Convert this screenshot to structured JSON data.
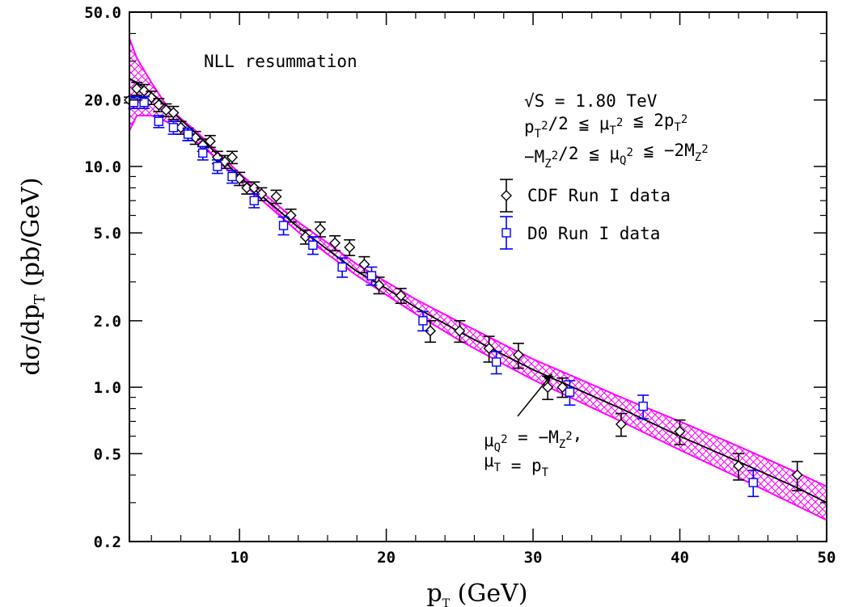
{
  "chart_data": {
    "type": "scatter",
    "title": "",
    "xlabel": "p",
    "xlabel_sub": "T",
    "xlabel_unit": " (GeV)",
    "ylabel": "dσ/dp",
    "ylabel_sub": "T",
    "ylabel_unit": " (pb/GeV)",
    "xlim": [
      2.5,
      50
    ],
    "ylim": [
      0.2,
      50
    ],
    "y_scale": "log",
    "grid": false,
    "x_ticks": [
      10,
      20,
      30,
      40,
      50
    ],
    "x_tick_labels": [
      "10",
      "20",
      "30",
      "40",
      "50"
    ],
    "y_ticks": [
      0.2,
      0.5,
      1.0,
      2.0,
      5.0,
      10.0,
      20.0,
      50.0
    ],
    "y_tick_labels": [
      "0.2",
      "0.5",
      "1.0",
      "2.0",
      "5.0",
      "10.0",
      "20.0",
      "50.0"
    ],
    "annotations": {
      "method": "NLL resummation",
      "energy": "√S =  1.80 TeV",
      "mu_t_range": "p_T^2/2 ≦ μ_T^2 ≦ 2p_T^2",
      "mu_q_range": "−M_Z^2/2 ≦ μ_Q^2 ≦ −2M_Z^2",
      "curve_label_1": "μ_Q^2 = −M_Z^2,",
      "curve_label_2": "μ_T = p_T"
    },
    "legend_position": "top-right",
    "series": [
      {
        "name": "CDF Run I data",
        "marker": "diamond",
        "color": "#000000",
        "x": [
          2.5,
          3.0,
          3.5,
          4.0,
          4.5,
          5.0,
          5.5,
          6.0,
          6.5,
          7.0,
          7.5,
          8.0,
          8.5,
          9.0,
          9.5,
          10.0,
          10.5,
          11.0,
          11.5,
          12.5,
          13.5,
          14.5,
          15.5,
          16.5,
          17.5,
          18.5,
          19.5,
          21.0,
          23.0,
          25.0,
          27.0,
          29.0,
          31.0,
          32.0,
          36.0,
          40.0,
          44.0,
          48.0
        ],
        "y": [
          20.0,
          22.5,
          22.0,
          20.5,
          19.0,
          18.0,
          17.5,
          15.0,
          14.0,
          13.5,
          12.5,
          13.0,
          11.0,
          10.5,
          11.0,
          8.8,
          8.0,
          8.0,
          7.5,
          7.3,
          6.0,
          4.8,
          5.2,
          4.5,
          4.3,
          3.6,
          2.9,
          2.6,
          1.8,
          1.8,
          1.5,
          1.4,
          1.0,
          1.0,
          0.68,
          0.63,
          0.44,
          0.4
        ],
        "yerr": [
          0.6,
          1.5,
          1.5,
          1.4,
          1.3,
          1.2,
          1.2,
          1.0,
          0.9,
          0.9,
          0.8,
          0.8,
          0.7,
          0.7,
          0.7,
          0.6,
          0.5,
          0.5,
          0.5,
          0.5,
          0.4,
          0.35,
          0.4,
          0.35,
          0.35,
          0.3,
          0.25,
          0.2,
          0.2,
          0.2,
          0.2,
          0.18,
          0.12,
          0.1,
          0.08,
          0.08,
          0.06,
          0.06
        ]
      },
      {
        "name": "D0 Run I data",
        "marker": "square",
        "color": "#0000ff",
        "x": [
          2.8,
          3.5,
          4.5,
          5.5,
          6.5,
          7.5,
          8.5,
          9.5,
          11.0,
          13.0,
          15.0,
          17.0,
          19.0,
          22.5,
          27.5,
          32.5,
          37.5,
          45.0
        ],
        "y": [
          19.5,
          19.5,
          16.0,
          15.0,
          14.0,
          11.5,
          10.0,
          9.0,
          7.0,
          5.4,
          4.4,
          3.5,
          3.2,
          2.0,
          1.3,
          0.95,
          0.82,
          0.37
        ],
        "yerr": [
          1.2,
          1.2,
          1.0,
          1.0,
          0.9,
          0.8,
          0.7,
          0.6,
          0.5,
          0.5,
          0.4,
          0.35,
          0.3,
          0.2,
          0.15,
          0.12,
          0.1,
          0.05
        ]
      },
      {
        "name": "central",
        "type": "line",
        "color": "#000000",
        "x": [
          2.5,
          3,
          4,
          5,
          6,
          7,
          8,
          9,
          10,
          12,
          14,
          16,
          18,
          20,
          22,
          25,
          28,
          30,
          33,
          36,
          40,
          44,
          48,
          50
        ],
        "y": [
          25.0,
          24.0,
          21.5,
          18.8,
          16.3,
          14.2,
          12.2,
          10.5,
          9.0,
          6.9,
          5.3,
          4.2,
          3.35,
          2.8,
          2.3,
          1.78,
          1.4,
          1.2,
          0.98,
          0.8,
          0.6,
          0.46,
          0.35,
          0.3
        ]
      },
      {
        "name": "band",
        "type": "area",
        "color": "#ff00ff",
        "x": [
          2.5,
          3,
          4,
          5,
          6,
          7,
          8,
          9,
          10,
          12,
          14,
          16,
          18,
          20,
          22,
          25,
          28,
          30,
          33,
          36,
          40,
          44,
          48,
          50
        ],
        "upper": [
          38.0,
          31.0,
          24.0,
          19.0,
          16.5,
          14.5,
          12.5,
          10.8,
          9.3,
          7.2,
          5.6,
          4.5,
          3.6,
          3.0,
          2.5,
          1.97,
          1.56,
          1.34,
          1.1,
          0.9,
          0.7,
          0.54,
          0.41,
          0.355
        ],
        "lower": [
          14.5,
          17.0,
          17.0,
          16.0,
          14.5,
          13.0,
          11.5,
          9.9,
          8.6,
          6.6,
          5.05,
          4.0,
          3.2,
          2.62,
          2.15,
          1.63,
          1.27,
          1.08,
          0.87,
          0.7,
          0.52,
          0.39,
          0.29,
          0.25
        ]
      }
    ]
  }
}
